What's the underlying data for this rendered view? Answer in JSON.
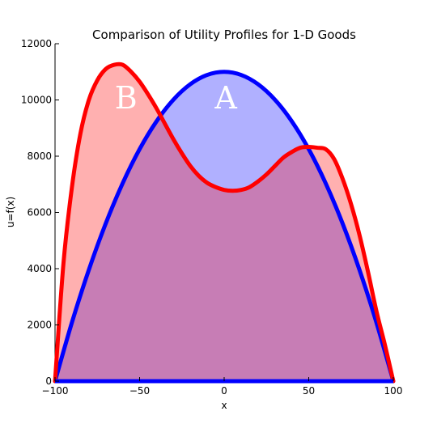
{
  "chart_data": {
    "type": "area",
    "title": "Comparison of Utility Profiles for 1-D Goods",
    "xlabel": "x",
    "ylabel": "u=f(x)",
    "xlim": [
      -100,
      100
    ],
    "ylim": [
      0,
      12000
    ],
    "xticks": [
      -100,
      -50,
      0,
      50,
      100
    ],
    "xtick_labels": [
      "−100",
      "−50",
      "0",
      "50",
      "100"
    ],
    "yticks": [
      0,
      2000,
      4000,
      6000,
      8000,
      10000,
      12000
    ],
    "ytick_labels": [
      "0",
      "2000",
      "4000",
      "6000",
      "8000",
      "10000",
      "12000"
    ],
    "grid": false,
    "series": [
      {
        "name": "A",
        "color": "#0000ff",
        "fill": "#b0b0ff",
        "x": [
          -100,
          -90,
          -80,
          -70,
          -60,
          -50,
          -40,
          -30,
          -20,
          -10,
          0,
          10,
          20,
          30,
          40,
          50,
          60,
          70,
          80,
          90,
          100
        ],
        "values": [
          0,
          2090,
          3960,
          5610,
          7040,
          8250,
          9240,
          10010,
          10560,
          10890,
          11000,
          10890,
          10560,
          10010,
          9240,
          8250,
          7040,
          5610,
          3960,
          2090,
          0
        ]
      },
      {
        "name": "B",
        "color": "#ff0000",
        "fill": "#ffb0b0",
        "x": [
          -100,
          -95,
          -90,
          -85,
          -80,
          -75,
          -70,
          -65,
          -60,
          -55,
          -50,
          -45,
          -40,
          -35,
          -30,
          -25,
          -20,
          -15,
          -10,
          -5,
          0,
          5,
          10,
          15,
          20,
          25,
          30,
          35,
          40,
          45,
          50,
          55,
          60,
          65,
          70,
          75,
          80,
          85,
          90,
          95,
          100
        ],
        "values": [
          0,
          4200,
          6900,
          8800,
          10000,
          10700,
          11100,
          11250,
          11250,
          11000,
          10650,
          10200,
          9700,
          9150,
          8600,
          8100,
          7650,
          7300,
          7050,
          6900,
          6800,
          6770,
          6800,
          6900,
          7100,
          7350,
          7650,
          7950,
          8150,
          8300,
          8330,
          8300,
          8250,
          7900,
          7200,
          6300,
          5200,
          3900,
          2500,
          1300,
          0
        ]
      }
    ],
    "overlap_fill": "#c77db5",
    "annotations": [
      {
        "text": "B",
        "x": -58,
        "y": 9700
      },
      {
        "text": "A",
        "x": 1,
        "y": 9700
      }
    ]
  }
}
